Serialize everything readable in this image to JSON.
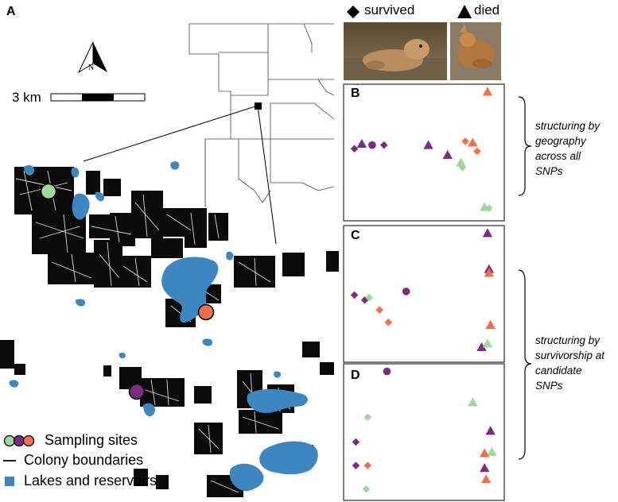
{
  "panel_a": {
    "letter": "A",
    "north_label": "N",
    "scale_label": "3 km",
    "legend": {
      "sites_label": "Sampling sites",
      "boundaries_label": "Colony boundaries",
      "lakes_label": "Lakes and reservoirs"
    },
    "site_colors": {
      "green": "#9fd89a",
      "purple": "#7a2d7e",
      "orange": "#ef6f4f"
    },
    "lake_color": "#3e86c1"
  },
  "top_legend": {
    "survived_label": "survived",
    "died_label": "died"
  },
  "panels": {
    "b": {
      "letter": "B"
    },
    "c": {
      "letter": "C"
    },
    "d": {
      "letter": "D"
    }
  },
  "annotations": {
    "geography": [
      "structuring by",
      "geography",
      "across all",
      "SNPs"
    ],
    "survivorship": [
      "structuring by",
      "survivorship at",
      "candidate",
      "SNPs"
    ]
  },
  "chart_data": [
    {
      "type": "scatter",
      "panel": "B",
      "title": "",
      "xlabel": "",
      "ylabel": "",
      "xlim": [
        0,
        100
      ],
      "ylim": [
        0,
        100
      ],
      "series": [
        {
          "name": "survived",
          "site": "purple",
          "marker": "diamond",
          "points": [
            [
              3,
              53
            ],
            [
              23,
              56
            ]
          ]
        },
        {
          "name": "survived",
          "site": "purple",
          "marker": "circle",
          "points": [
            [
              15,
              56
            ]
          ]
        },
        {
          "name": "died",
          "site": "purple",
          "marker": "triangle",
          "points": [
            [
              8,
              57
            ],
            [
              53,
              56
            ],
            [
              66,
              48
            ]
          ]
        },
        {
          "name": "survived",
          "site": "orange",
          "marker": "diamond",
          "points": [
            [
              78,
              59
            ],
            [
              86,
              51
            ]
          ]
        },
        {
          "name": "died",
          "site": "orange",
          "marker": "triangle",
          "points": [
            [
              83,
              58
            ],
            [
              93,
              99
            ]
          ]
        },
        {
          "name": "survived",
          "site": "green",
          "marker": "diamond",
          "points": [
            [
              76,
              38
            ],
            [
              94,
              5
            ]
          ]
        },
        {
          "name": "died",
          "site": "green",
          "marker": "triangle",
          "points": [
            [
              75,
              42
            ],
            [
              91,
              6
            ]
          ]
        }
      ]
    },
    {
      "type": "scatter",
      "panel": "C",
      "title": "",
      "xlabel": "",
      "ylabel": "",
      "xlim": [
        0,
        100
      ],
      "ylim": [
        0,
        100
      ],
      "series": [
        {
          "name": "survived",
          "site": "purple",
          "marker": "diamond",
          "points": [
            [
              3,
              49
            ],
            [
              10,
              45
            ]
          ]
        },
        {
          "name": "survived",
          "site": "purple",
          "marker": "circle",
          "points": [
            [
              38,
              52
            ]
          ]
        },
        {
          "name": "died",
          "site": "purple",
          "marker": "triangle",
          "points": [
            [
              93,
              99
            ],
            [
              94,
              70
            ],
            [
              89,
              7
            ]
          ]
        },
        {
          "name": "survived",
          "site": "green",
          "marker": "diamond",
          "points": [
            [
              13,
              47
            ]
          ]
        },
        {
          "name": "survived",
          "site": "orange",
          "marker": "diamond",
          "points": [
            [
              20,
              37
            ],
            [
              26,
              27
            ]
          ]
        },
        {
          "name": "died",
          "site": "orange",
          "marker": "triangle",
          "points": [
            [
              94,
              67
            ],
            [
              95,
              25
            ]
          ]
        },
        {
          "name": "died",
          "site": "green",
          "marker": "triangle",
          "points": [
            [
              93,
              10
            ]
          ]
        }
      ]
    },
    {
      "type": "scatter",
      "panel": "D",
      "title": "",
      "xlabel": "",
      "ylabel": "",
      "xlim": [
        0,
        100
      ],
      "ylim": [
        0,
        100
      ],
      "series": [
        {
          "name": "survived",
          "site": "purple",
          "marker": "circle",
          "points": [
            [
              25,
              99
            ]
          ]
        },
        {
          "name": "survived",
          "site": "purple",
          "marker": "diamond",
          "points": [
            [
              4,
              42
            ],
            [
              4,
              23
            ]
          ]
        },
        {
          "name": "survived",
          "site": "green",
          "marker": "diamond",
          "points": [
            [
              12,
              62
            ],
            [
              11,
              4
            ]
          ]
        },
        {
          "name": "survived",
          "site": "orange",
          "marker": "diamond",
          "points": [
            [
              12,
              23
            ]
          ]
        },
        {
          "name": "died",
          "site": "green",
          "marker": "triangle",
          "points": [
            [
              83,
              74
            ],
            [
              96,
              34
            ]
          ]
        },
        {
          "name": "died",
          "site": "purple",
          "marker": "triangle",
          "points": [
            [
              95,
              51
            ],
            [
              91,
              21
            ]
          ]
        },
        {
          "name": "died",
          "site": "orange",
          "marker": "triangle",
          "points": [
            [
              91,
              33
            ],
            [
              92,
              12
            ]
          ]
        }
      ]
    }
  ]
}
